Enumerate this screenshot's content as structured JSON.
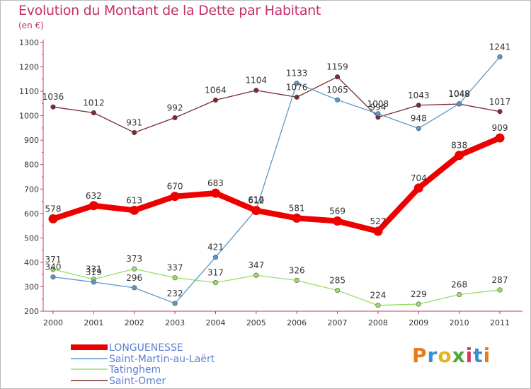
{
  "header": {
    "title": "Evolution du Montant de la Dette par Habitant",
    "unit": "(en €)"
  },
  "logo": {
    "text": "Proxiti",
    "colors": [
      "#e87a1e",
      "#3a8fd4",
      "#e8b21e",
      "#4aa83a",
      "#d43a5c",
      "#3a8fd4",
      "#e87a1e"
    ]
  },
  "chart_data": {
    "type": "line",
    "x": [
      "2000",
      "2001",
      "2002",
      "2003",
      "2004",
      "2005",
      "2006",
      "2007",
      "2008",
      "2009",
      "2010",
      "2011"
    ],
    "ylim": [
      200,
      1300
    ],
    "yticks": [
      200,
      300,
      400,
      500,
      600,
      700,
      800,
      900,
      1000,
      1100,
      1200,
      1300
    ],
    "grid": false,
    "legend": "bottom-left",
    "series": [
      {
        "name": "LONGUENESSE",
        "color": "#ee0000",
        "values": [
          578,
          632,
          613,
          670,
          683,
          612,
          581,
          569,
          527,
          704,
          838,
          909
        ]
      },
      {
        "name": "Saint-Martin-au-Laërt",
        "color": "#5a96c8",
        "values": [
          340,
          319,
          296,
          232,
          421,
          616,
          1133,
          1065,
          1008,
          948,
          1049,
          1241
        ]
      },
      {
        "name": "Tatinghem",
        "color": "#99dd66",
        "values": [
          371,
          331,
          373,
          337,
          317,
          347,
          326,
          285,
          224,
          229,
          268,
          287
        ]
      },
      {
        "name": "Saint-Omer",
        "color": "#7a2a30",
        "values": [
          1036,
          1012,
          931,
          992,
          1064,
          1104,
          1076,
          1159,
          994,
          1043,
          1048,
          1017
        ]
      }
    ]
  }
}
